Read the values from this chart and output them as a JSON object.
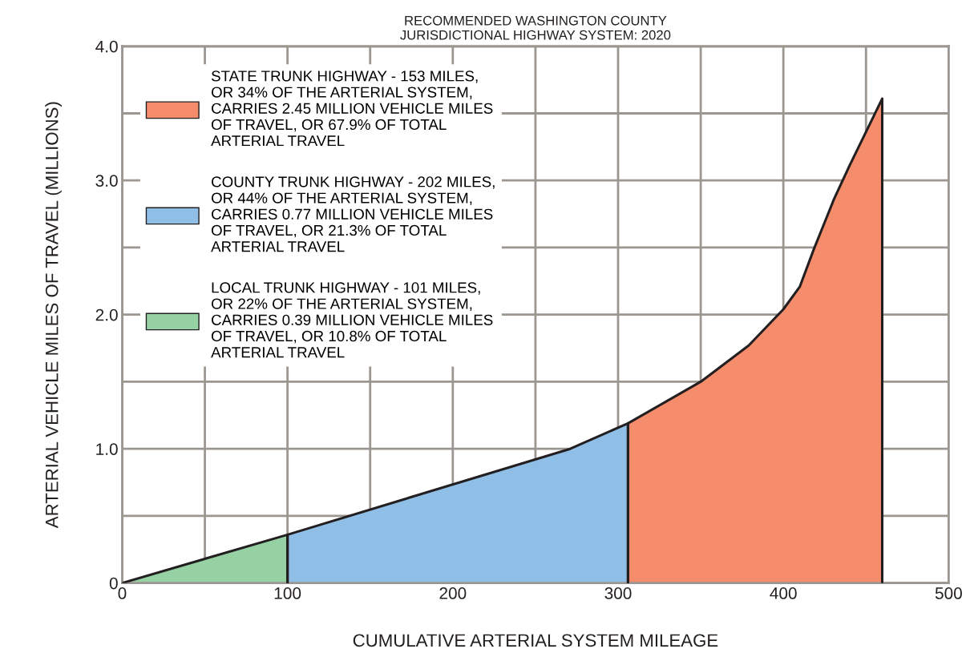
{
  "chart_data": {
    "type": "area",
    "title": "RECOMMENDED WASHINGTON COUNTY\nJURISDICTIONAL HIGHWAY SYSTEM: 2020",
    "xlabel": "CUMULATIVE ARTERIAL SYSTEM MILEAGE",
    "ylabel": "ARTERIAL VEHICLE MILES OF TRAVEL (MILLIONS)",
    "series": [
      {
        "name": "STATE TRUNK HIGHWAY - 153 MILES,\nOR 34% OF THE ARTERIAL SYSTEM,\nCARRIES 2.45 MILLION VEHICLE MILES\nOF TRAVEL, OR 67.9% OF TOTAL\nARTERIAL TRAVEL",
        "color": "#f58d6d",
        "x": [
          306,
          350,
          379,
          400,
          410,
          418.5,
          430.6,
          440,
          459.8
        ],
        "values": [
          1.19,
          1.5,
          1.77,
          2.04,
          2.21,
          2.49,
          2.86,
          3.11,
          3.61
        ]
      },
      {
        "name": "COUNTY TRUNK HIGHWAY - 202 MILES,\nOR 44% OF THE ARTERIAL SYSTEM,\nCARRIES 0.77 MILLION VEHICLE MILES\nOF TRAVEL, OR 21.3% OF TOTAL\nARTERIAL TRAVEL",
        "color": "#8fbfe6",
        "x": [
          100,
          271,
          306
        ],
        "values": [
          0.36,
          1.0,
          1.19
        ]
      },
      {
        "name": "LOCAL TRUNK HIGHWAY - 101 MILES,\nOR 22% OF THE ARTERIAL SYSTEM,\nCARRIES 0.39 MILLION VEHICLE MILES\nOF TRAVEL, OR 10.8% OF TOTAL\nARTERIAL TRAVEL",
        "color": "#96d1a4",
        "x": [
          0,
          100
        ],
        "values": [
          0,
          0.36
        ]
      }
    ],
    "xlim": [
      0,
      500
    ],
    "ylim": [
      0,
      4.0
    ],
    "xticks": [
      0,
      {
        "value": 50,
        "label": null
      },
      100,
      {
        "value": 150,
        "label": null
      },
      200,
      {
        "value": 250,
        "label": null
      },
      300,
      {
        "value": 350,
        "label": null
      },
      400,
      {
        "value": 450,
        "label": null
      },
      500
    ],
    "yticks": [
      0,
      {
        "value": 0.5,
        "label": null
      },
      {
        "value": 1,
        "label": "1.0"
      },
      {
        "value": 1.5,
        "label": null
      },
      {
        "value": 2,
        "label": "2.0"
      },
      {
        "value": 2.5,
        "label": null
      },
      {
        "value": 3,
        "label": "3.0"
      },
      {
        "value": 3.5,
        "label": null
      },
      {
        "value": 4,
        "label": "4.0"
      }
    ],
    "grid": true,
    "legend": "top left"
  }
}
